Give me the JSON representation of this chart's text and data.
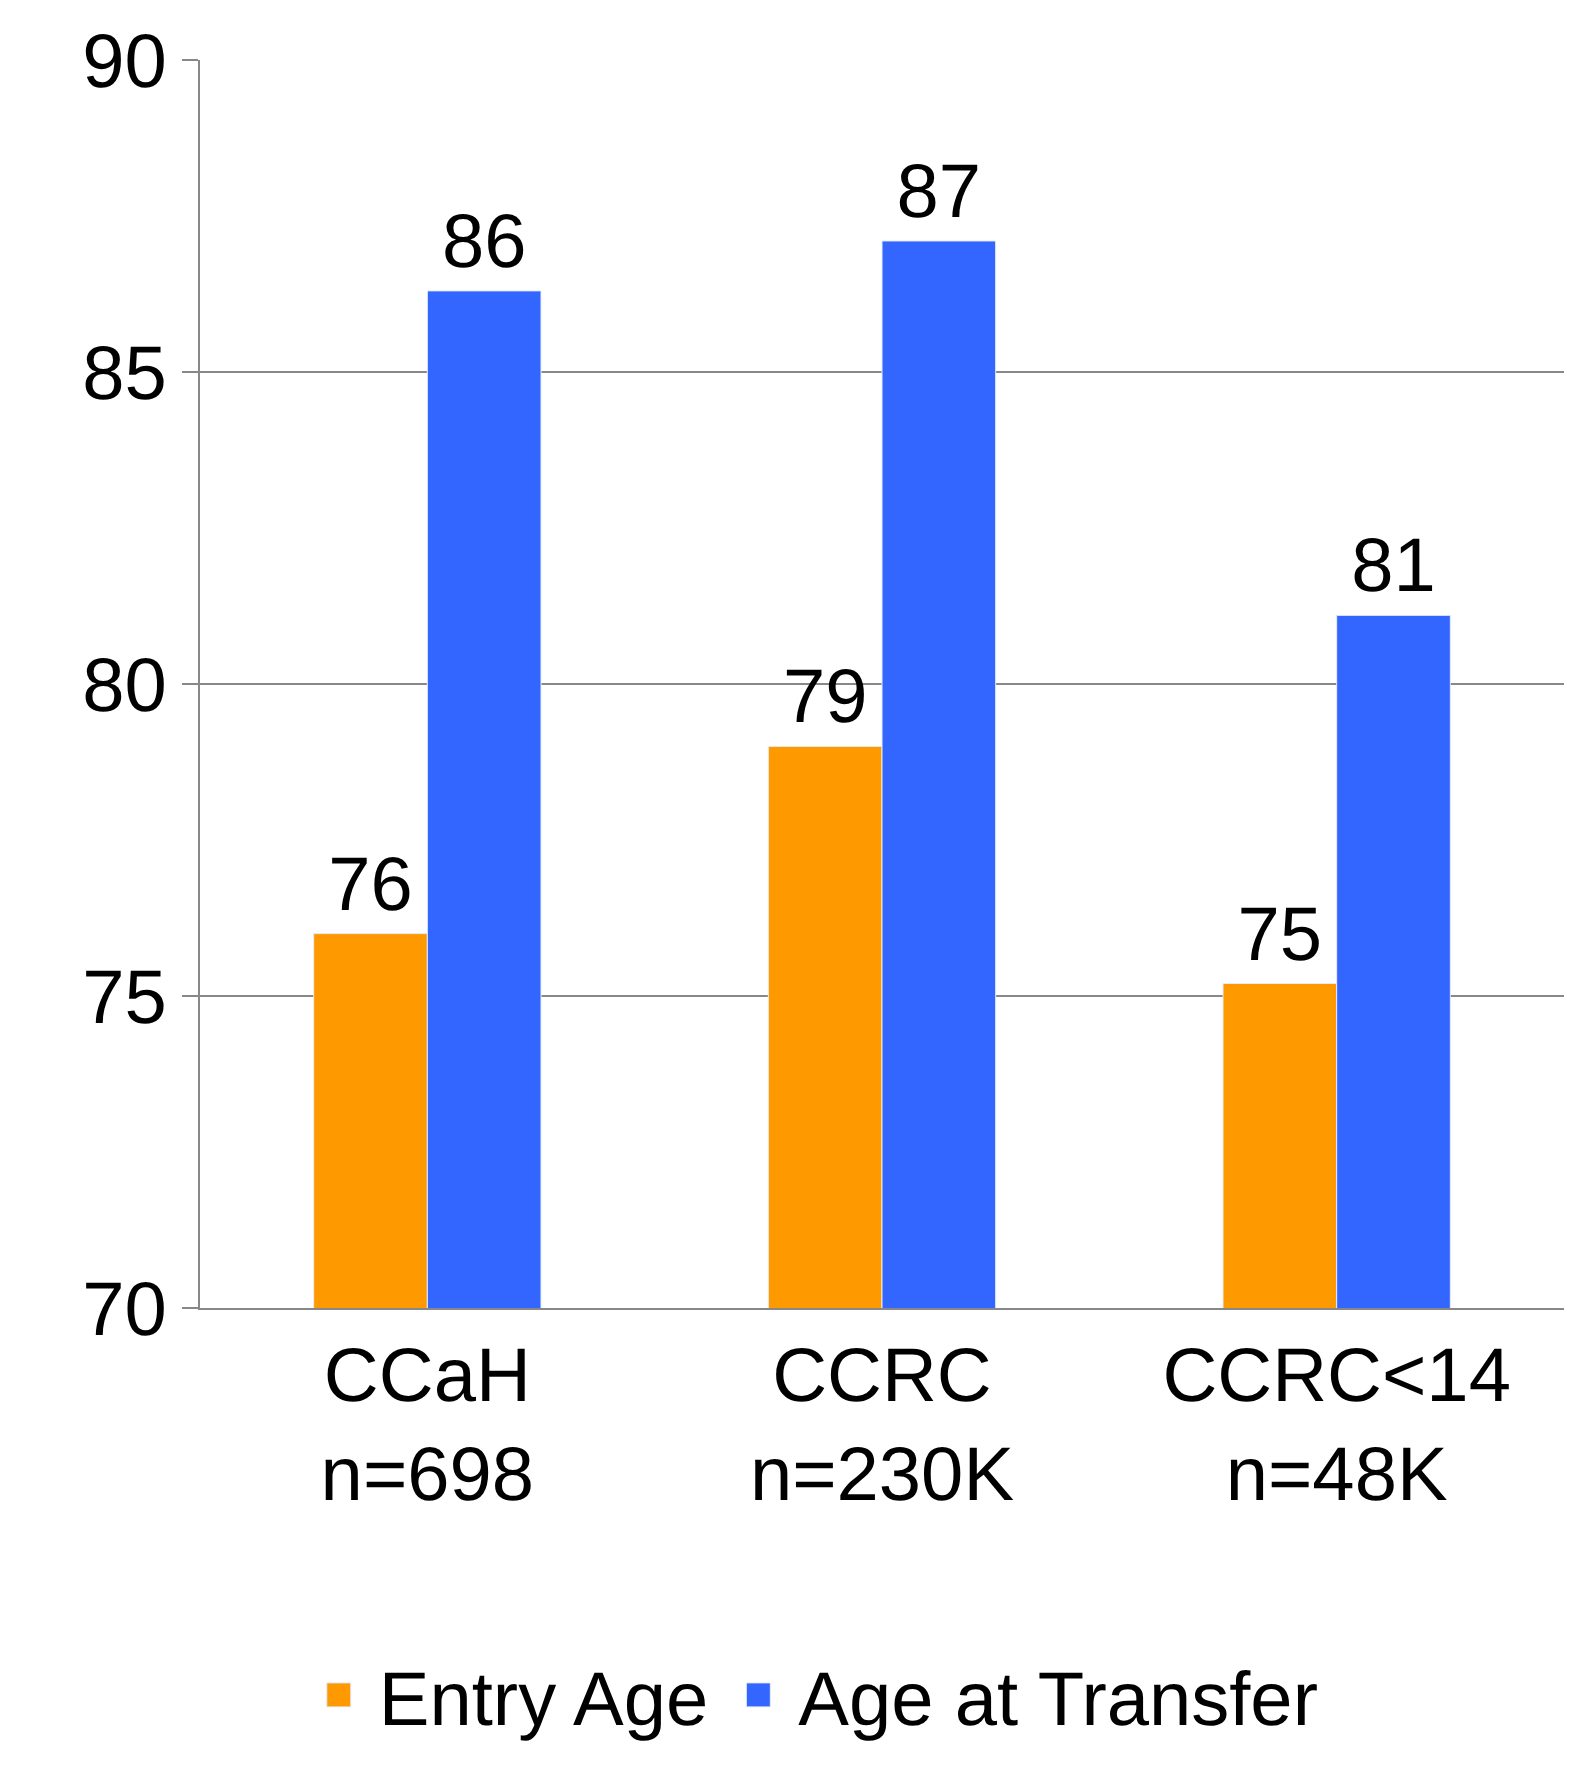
{
  "chart_data": {
    "type": "bar",
    "categories": [
      "CCaH\nn=698",
      "CCRC\nn=230K",
      "CCRC<14\nn=48K"
    ],
    "series": [
      {
        "name": "Entry Age",
        "color": "#ff9900",
        "values": [
          76.0,
          79.0,
          75.2
        ],
        "value_labels": [
          "76",
          "79",
          "75"
        ]
      },
      {
        "name": "Age at Transfer",
        "color": "#3366ff",
        "values": [
          86.3,
          87.1,
          81.1
        ],
        "value_labels": [
          "86",
          "87",
          "81"
        ]
      }
    ],
    "ylim": [
      70,
      90
    ],
    "yticks": [
      70,
      75,
      80,
      85,
      90
    ],
    "grid": "y",
    "legend": "bottom"
  }
}
